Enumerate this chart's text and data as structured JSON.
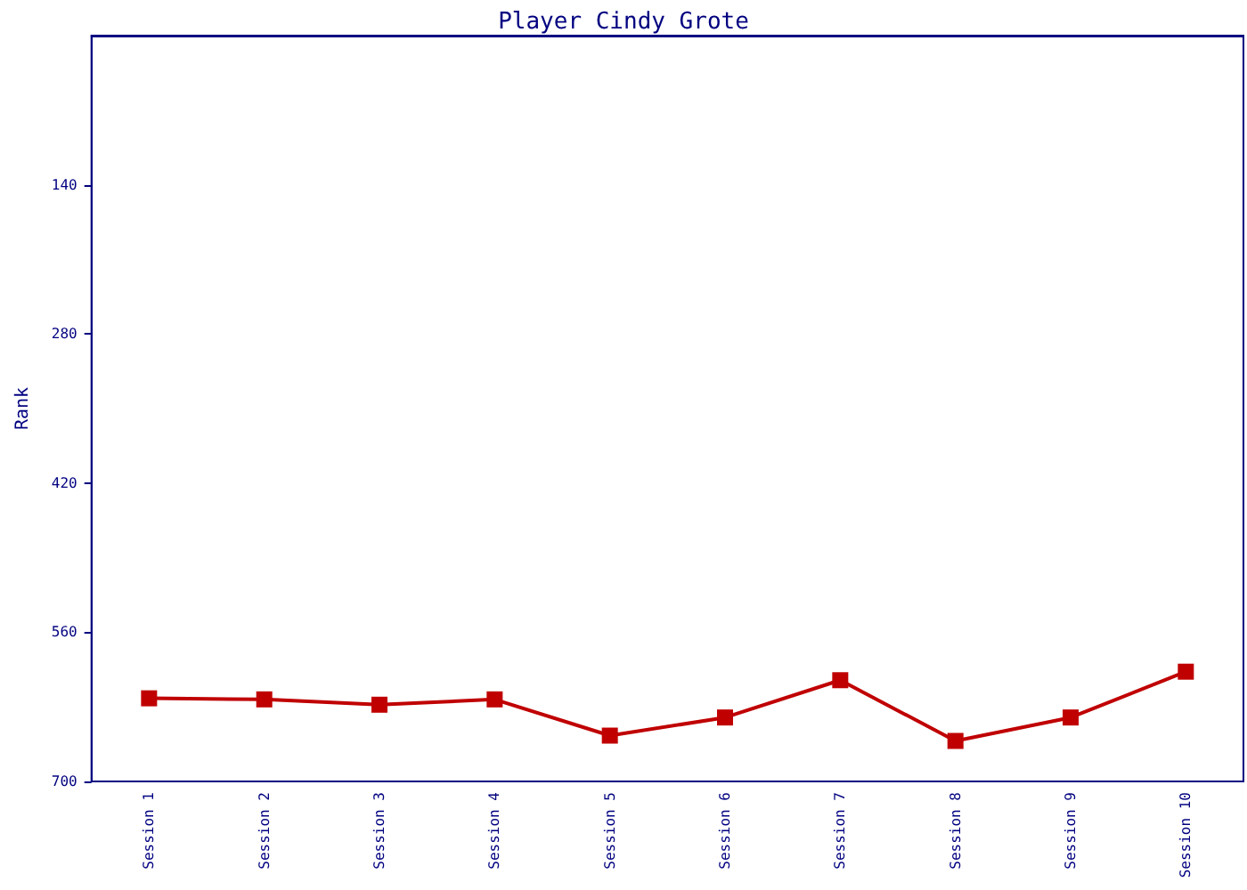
{
  "chart_data": {
    "type": "line",
    "title": "Player Cindy Grote",
    "ylabel": "Rank",
    "categories": [
      "Session 1",
      "Session 2",
      "Session 3",
      "Session 4",
      "Session 5",
      "Session 6",
      "Session 7",
      "Session 8",
      "Session 9",
      "Session 10"
    ],
    "series": [
      {
        "color": "#c00000",
        "values": [
          622,
          623,
          628,
          623,
          657,
          640,
          605,
          662,
          640,
          597
        ]
      }
    ],
    "ylim": [
      700,
      0
    ],
    "yticks": [
      140,
      280,
      420,
      560,
      700
    ],
    "grid": false,
    "marker": "square",
    "line_style": "solid"
  }
}
